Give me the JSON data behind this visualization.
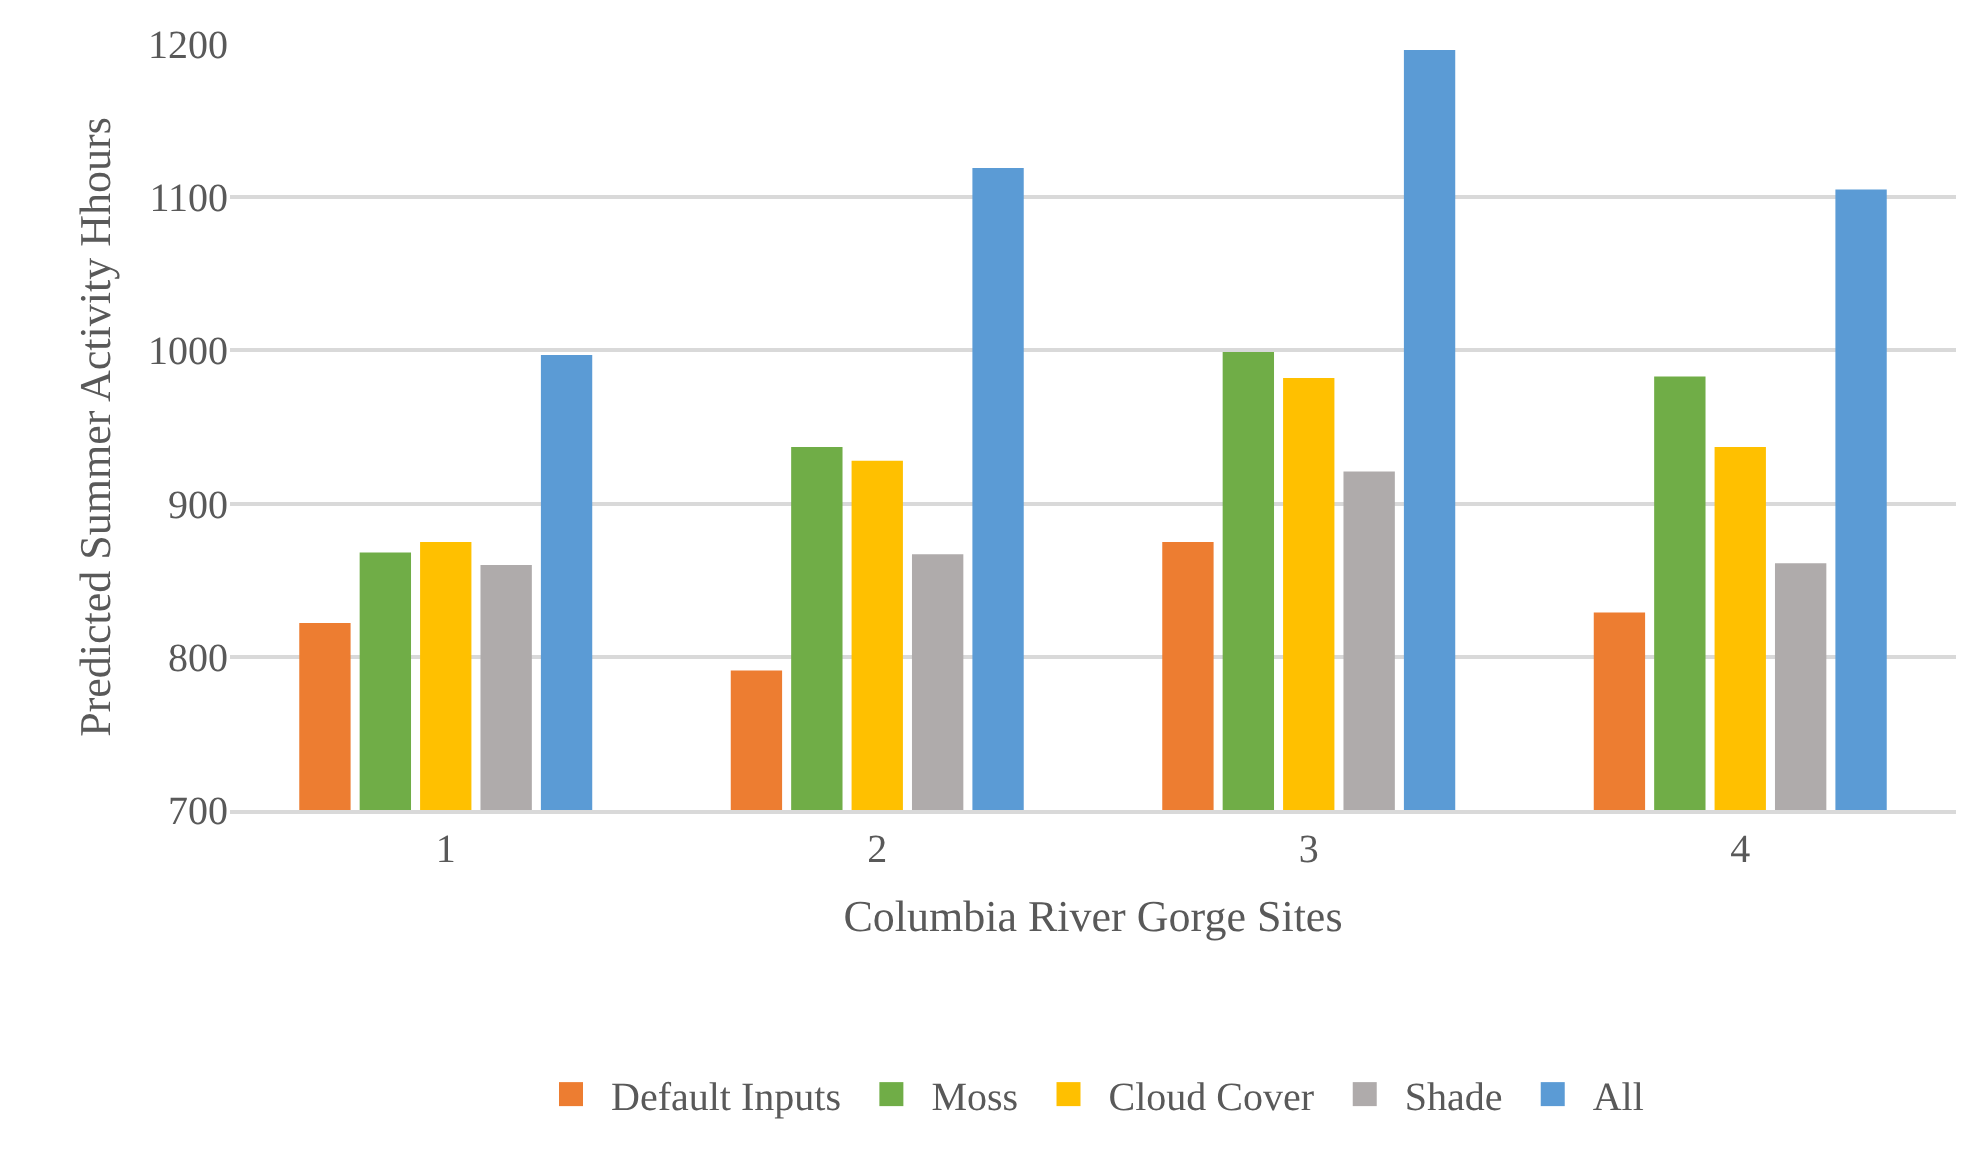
{
  "chart_data": {
    "type": "bar",
    "xlabel": "Columbia River Gorge Sites",
    "ylabel": "Predicted Summer Activity Hhours",
    "categories": [
      "1",
      "2",
      "3",
      "4"
    ],
    "series": [
      {
        "name": "Default Inputs",
        "color": "#ed7d31",
        "values": [
          822,
          791,
          875,
          829
        ]
      },
      {
        "name": "Moss",
        "color": "#70ad47",
        "values": [
          868,
          937,
          999,
          983
        ]
      },
      {
        "name": "Cloud Cover",
        "color": "#ffc000",
        "values": [
          875,
          928,
          982,
          937
        ]
      },
      {
        "name": "Shade",
        "color": "#afabab",
        "values": [
          860,
          867,
          921,
          861
        ]
      },
      {
        "name": "All",
        "color": "#5b9bd5",
        "values": [
          997,
          1119,
          1196,
          1105
        ]
      }
    ],
    "ylim": [
      700,
      1200
    ],
    "yticks": [
      700,
      800,
      900,
      1000,
      1100,
      1200
    ],
    "grid": "y",
    "legend": "bottom"
  }
}
